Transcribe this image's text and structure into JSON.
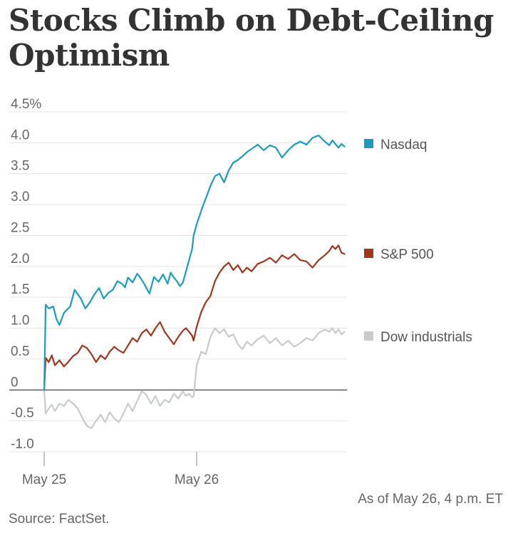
{
  "title": "Stocks Climb on Debt-Ceiling Optimism",
  "as_of": "As of May 26, 4 p.m. ET",
  "source": "Source: FactSet.",
  "chart_data": {
    "type": "line",
    "xlabel": "",
    "ylabel": "",
    "ylim": [
      -1.0,
      4.5
    ],
    "grid": true,
    "legend_position": "right",
    "y_ticks": [
      "4.5%",
      "4.0",
      "3.5",
      "3.0",
      "2.5",
      "2.0",
      "1.5",
      "1.0",
      "0.5",
      "0",
      "-0.5",
      "-1.0"
    ],
    "y_tick_values": [
      4.5,
      4.0,
      3.5,
      3.0,
      2.5,
      2.0,
      1.5,
      1.0,
      0.5,
      0,
      -0.5,
      -1.0
    ],
    "x_ticks": [
      "May 25",
      "May 26"
    ],
    "x_tick_values": [
      0,
      1
    ],
    "x_range": [
      0,
      1.97
    ],
    "series": [
      {
        "name": "Nasdaq",
        "color": "#1a9cc1",
        "x": [
          0,
          0.01,
          0.03,
          0.06,
          0.08,
          0.1,
          0.13,
          0.17,
          0.2,
          0.24,
          0.27,
          0.3,
          0.33,
          0.36,
          0.39,
          0.42,
          0.45,
          0.48,
          0.51,
          0.53,
          0.55,
          0.58,
          0.61,
          0.63,
          0.66,
          0.69,
          0.72,
          0.75,
          0.78,
          0.81,
          0.83,
          0.85,
          0.87,
          0.89,
          0.91,
          0.93,
          0.95,
          0.97,
          0.98,
          1.0,
          1.03,
          1.06,
          1.09,
          1.12,
          1.15,
          1.18,
          1.21,
          1.24,
          1.27,
          1.3,
          1.33,
          1.36,
          1.4,
          1.44,
          1.48,
          1.52,
          1.56,
          1.6,
          1.64,
          1.68,
          1.72,
          1.76,
          1.8,
          1.84,
          1.87,
          1.89,
          1.91,
          1.93,
          1.95,
          1.97
        ],
        "values": [
          0,
          1.38,
          1.32,
          1.35,
          1.15,
          1.05,
          1.25,
          1.35,
          1.62,
          1.48,
          1.32,
          1.42,
          1.55,
          1.65,
          1.48,
          1.57,
          1.62,
          1.76,
          1.72,
          1.66,
          1.82,
          1.74,
          1.88,
          1.82,
          1.7,
          1.56,
          1.83,
          1.75,
          1.87,
          1.72,
          1.9,
          1.82,
          1.76,
          1.68,
          1.74,
          1.92,
          2.1,
          2.28,
          2.5,
          2.68,
          2.9,
          3.1,
          3.3,
          3.46,
          3.5,
          3.36,
          3.55,
          3.68,
          3.72,
          3.78,
          3.85,
          3.9,
          3.97,
          3.88,
          3.96,
          3.92,
          3.76,
          3.88,
          3.97,
          4.02,
          3.97,
          4.08,
          4.12,
          4.02,
          3.96,
          4.04,
          3.98,
          3.92,
          3.98,
          3.94
        ]
      },
      {
        "name": "S&P 500",
        "color": "#a1361c",
        "x": [
          0,
          0.01,
          0.03,
          0.05,
          0.07,
          0.1,
          0.13,
          0.16,
          0.19,
          0.22,
          0.25,
          0.28,
          0.31,
          0.34,
          0.37,
          0.4,
          0.43,
          0.46,
          0.49,
          0.52,
          0.55,
          0.58,
          0.61,
          0.64,
          0.67,
          0.7,
          0.73,
          0.76,
          0.79,
          0.82,
          0.85,
          0.88,
          0.91,
          0.93,
          0.95,
          0.97,
          0.98,
          1.0,
          1.03,
          1.06,
          1.09,
          1.12,
          1.15,
          1.18,
          1.21,
          1.24,
          1.27,
          1.3,
          1.33,
          1.36,
          1.4,
          1.44,
          1.48,
          1.52,
          1.56,
          1.6,
          1.64,
          1.68,
          1.72,
          1.76,
          1.8,
          1.84,
          1.87,
          1.89,
          1.91,
          1.93,
          1.95,
          1.97
        ],
        "values": [
          0,
          0.52,
          0.45,
          0.56,
          0.4,
          0.48,
          0.38,
          0.46,
          0.55,
          0.6,
          0.72,
          0.68,
          0.58,
          0.45,
          0.56,
          0.5,
          0.62,
          0.7,
          0.64,
          0.6,
          0.72,
          0.84,
          0.78,
          0.92,
          0.98,
          0.88,
          1.0,
          1.1,
          0.94,
          0.84,
          0.74,
          0.86,
          0.96,
          1.0,
          0.94,
          0.88,
          0.8,
          1.02,
          1.26,
          1.42,
          1.52,
          1.76,
          1.9,
          2.0,
          2.06,
          1.94,
          2.02,
          1.9,
          1.98,
          1.92,
          2.04,
          2.08,
          2.14,
          2.06,
          2.18,
          2.12,
          2.2,
          2.1,
          2.08,
          1.98,
          2.1,
          2.18,
          2.25,
          2.33,
          2.28,
          2.34,
          2.22,
          2.2
        ]
      },
      {
        "name": "Dow industrials",
        "color": "#c8cacc",
        "x": [
          0,
          0.01,
          0.03,
          0.05,
          0.07,
          0.1,
          0.13,
          0.16,
          0.19,
          0.22,
          0.25,
          0.28,
          0.31,
          0.34,
          0.37,
          0.4,
          0.43,
          0.46,
          0.49,
          0.52,
          0.55,
          0.58,
          0.61,
          0.64,
          0.67,
          0.7,
          0.73,
          0.76,
          0.79,
          0.82,
          0.85,
          0.88,
          0.91,
          0.93,
          0.95,
          0.97,
          0.98,
          1.0,
          1.03,
          1.06,
          1.09,
          1.12,
          1.15,
          1.18,
          1.21,
          1.24,
          1.27,
          1.3,
          1.33,
          1.36,
          1.4,
          1.44,
          1.48,
          1.52,
          1.56,
          1.6,
          1.64,
          1.68,
          1.72,
          1.76,
          1.8,
          1.84,
          1.87,
          1.89,
          1.91,
          1.93,
          1.95,
          1.97
        ],
        "values": [
          0,
          -0.38,
          -0.3,
          -0.24,
          -0.34,
          -0.22,
          -0.26,
          -0.16,
          -0.22,
          -0.3,
          -0.45,
          -0.58,
          -0.62,
          -0.5,
          -0.4,
          -0.52,
          -0.36,
          -0.46,
          -0.52,
          -0.38,
          -0.22,
          -0.34,
          -0.18,
          -0.02,
          -0.08,
          -0.22,
          -0.1,
          -0.26,
          -0.16,
          -0.2,
          -0.06,
          -0.14,
          -0.02,
          -0.1,
          -0.06,
          -0.12,
          -0.1,
          0.4,
          0.62,
          0.58,
          0.86,
          1.0,
          0.92,
          0.98,
          0.86,
          0.9,
          0.74,
          0.66,
          0.78,
          0.72,
          0.82,
          0.88,
          0.76,
          0.84,
          0.72,
          0.8,
          0.7,
          0.76,
          0.84,
          0.8,
          0.92,
          0.98,
          0.94,
          1.0,
          0.92,
          0.98,
          0.9,
          0.94
        ]
      }
    ]
  }
}
